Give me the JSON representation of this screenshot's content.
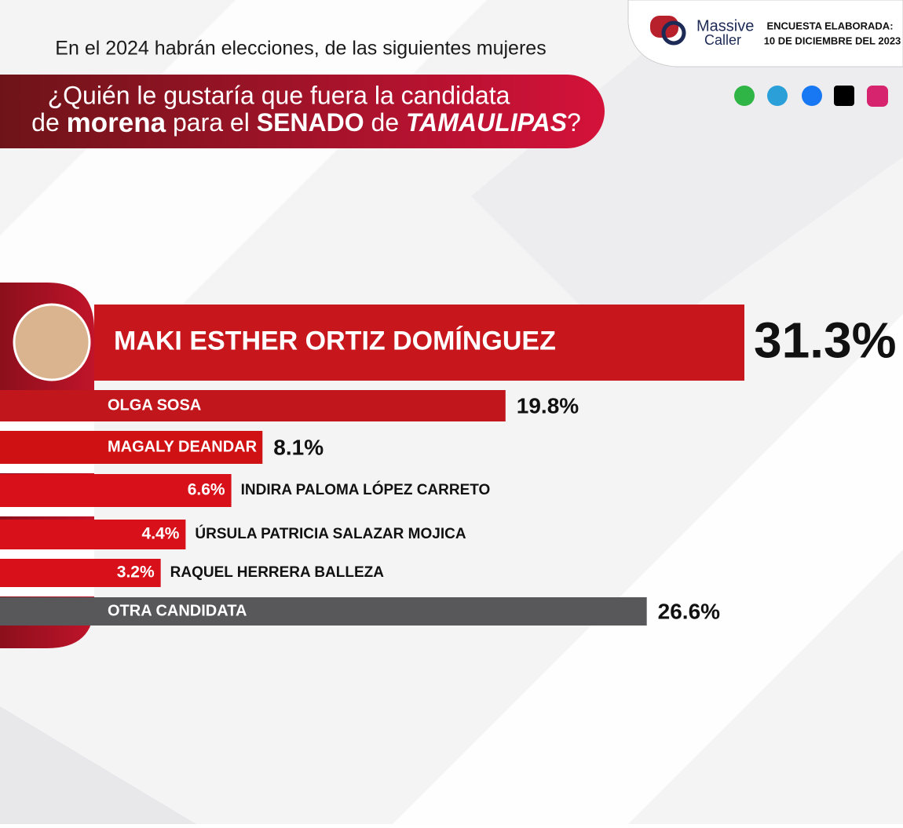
{
  "header": {
    "subtitle": "En el 2024 habrán elecciones, de las siguientes mujeres",
    "question_line1": "¿Quién le gustaría que fuera la candidata",
    "question_line2": [
      "de ",
      "morena",
      " para el ",
      "SENADO",
      " de ",
      "TAMAULIPAS",
      "?"
    ]
  },
  "brand": {
    "logo_line1": "Massive",
    "logo_line2": "Caller",
    "survey_label": "ENCUESTA ELABORADA:",
    "survey_date": "10 DE DICIEMBRE DEL 2023"
  },
  "chart_data": {
    "type": "bar",
    "orientation": "horizontal",
    "categories": [
      "MAKI ESTHER ORTIZ DOMÍNGUEZ",
      "OLGA SOSA",
      "MAGALY DEANDAR",
      "INDIRA PALOMA LÓPEZ CARRETO",
      "ÚRSULA PATRICIA SALAZAR MOJICA",
      "RAQUEL HERRERA BALLEZA",
      "OTRA CANDIDATA"
    ],
    "values": [
      31.3,
      19.8,
      8.1,
      6.6,
      4.4,
      3.2,
      26.6
    ],
    "value_labels": [
      "31.3%",
      "19.8%",
      "8.1%",
      "6.6%",
      "4.4%",
      "3.2%",
      "26.6%"
    ],
    "colors": [
      "#c8161d",
      "#c0161c",
      "#d01114",
      "#d8101a",
      "#d8101a",
      "#d8101a",
      "#58585a"
    ]
  }
}
